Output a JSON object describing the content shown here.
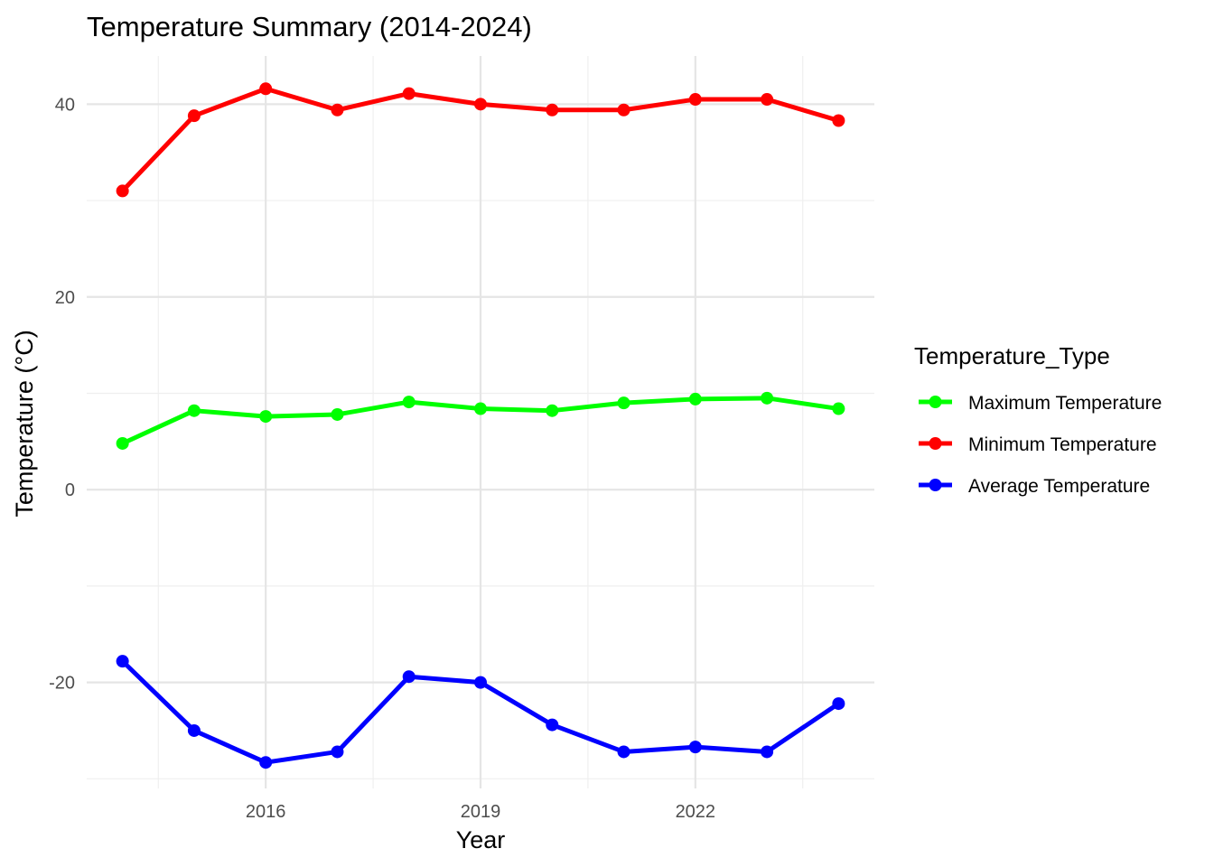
{
  "chart_data": {
    "type": "line",
    "title": "Temperature Summary (2014-2024)",
    "xlabel": "Year",
    "ylabel": "Temperature (°C)",
    "x": [
      2014,
      2015,
      2016,
      2017,
      2018,
      2019,
      2020,
      2021,
      2022,
      2023,
      2024
    ],
    "xlim": [
      2013.5,
      2024.5
    ],
    "ylim": [
      -31,
      45
    ],
    "x_ticks": [
      2016,
      2019,
      2022
    ],
    "x_minor_ticks": [
      2014.5,
      2017.5,
      2020.5,
      2023.5
    ],
    "y_ticks": [
      -20,
      0,
      20,
      40
    ],
    "y_minor_ticks": [
      -30,
      -10,
      10,
      30
    ],
    "grid": true,
    "legend_title": "Temperature_Type",
    "legend_position": "right",
    "series": [
      {
        "name": "Maximum Temperature",
        "color": "#00ff00",
        "values": [
          4.8,
          8.2,
          7.6,
          7.8,
          9.1,
          8.4,
          8.2,
          9.0,
          9.4,
          9.5,
          8.4
        ]
      },
      {
        "name": "Minimum Temperature",
        "color": "#ff0000",
        "values": [
          31.0,
          38.8,
          41.6,
          39.4,
          41.1,
          40.0,
          39.4,
          39.4,
          40.5,
          40.5,
          38.3
        ]
      },
      {
        "name": "Average Temperature",
        "color": "#0000ff",
        "values": [
          -17.8,
          -25.0,
          -28.3,
          -27.2,
          -19.4,
          -20.0,
          -24.4,
          -27.2,
          -26.7,
          -27.2,
          -22.2
        ]
      }
    ]
  }
}
